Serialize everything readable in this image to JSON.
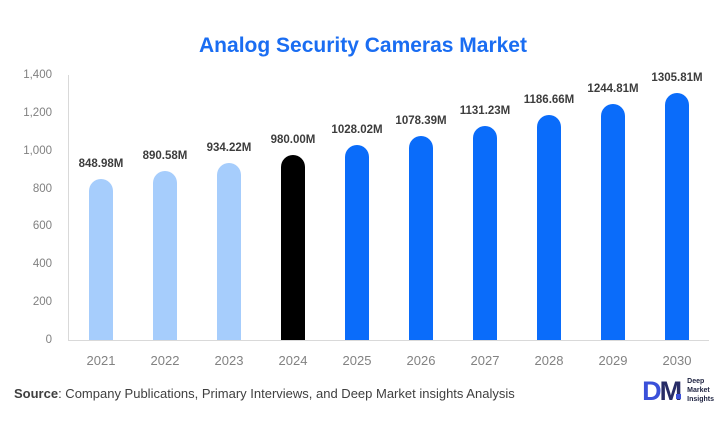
{
  "chart_data": {
    "type": "bar",
    "title": "Analog Security Cameras Market",
    "categories": [
      "2021",
      "2022",
      "2023",
      "2024",
      "2025",
      "2026",
      "2027",
      "2028",
      "2029",
      "2030"
    ],
    "values": [
      848.98,
      890.58,
      934.22,
      980.0,
      1028.02,
      1078.39,
      1131.23,
      1186.66,
      1244.81,
      1305.81
    ],
    "value_labels": [
      "848.98M",
      "890.58M",
      "934.22M",
      "980.00M",
      "1028.02M",
      "1078.39M",
      "1131.23M",
      "1186.66M",
      "1244.81M",
      "1305.81M"
    ],
    "bar_colors": [
      "#a6cdfc",
      "#a6cdfc",
      "#a6cdfc",
      "#000000",
      "#0a6cfa",
      "#0a6cfa",
      "#0a6cfa",
      "#0a6cfa",
      "#0a6cfa",
      "#0a6cfa"
    ],
    "ylim": [
      0,
      1400
    ],
    "yticks": [
      "1,400",
      "1,200",
      "1,000",
      "800",
      "600",
      "400",
      "200",
      "0"
    ],
    "xlabel": "",
    "ylabel": "",
    "grid": false,
    "legend": false
  },
  "colors": {
    "title": "#1a6df2",
    "bar_light_blue": "#a6cdfc",
    "bar_highlight_black": "#000000",
    "bar_blue": "#0a6cfa",
    "axis_line": "#d9d9d9",
    "tick_text": "#808080",
    "value_text": "#3d3d3d",
    "source_text": "#3f3f3f",
    "logo_blue": "#3a50d9",
    "logo_navy": "#272c66"
  },
  "footer": {
    "source_label": "Source",
    "source_text": ": Company Publications, Primary Interviews, and Deep Market insights Analysis"
  },
  "logo": {
    "mark_d": "D",
    "mark_m": "M",
    "name_lines": [
      "Deep",
      "Market",
      "Insights"
    ]
  }
}
